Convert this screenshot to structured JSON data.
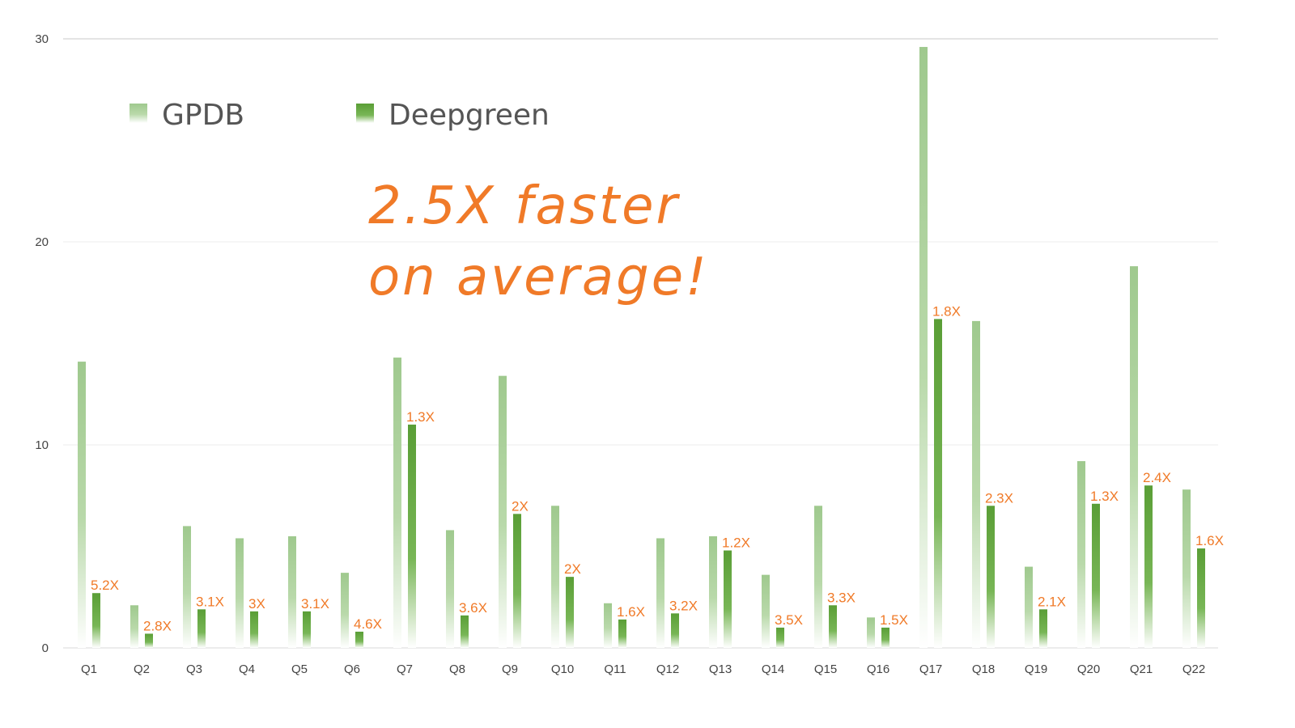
{
  "chart_data": {
    "type": "bar",
    "categories": [
      "Q1",
      "Q2",
      "Q3",
      "Q4",
      "Q5",
      "Q6",
      "Q7",
      "Q8",
      "Q9",
      "Q10",
      "Q11",
      "Q12",
      "Q13",
      "Q14",
      "Q15",
      "Q16",
      "Q17",
      "Q18",
      "Q19",
      "Q20",
      "Q21",
      "Q22"
    ],
    "series": [
      {
        "name": "GPDB",
        "color": "#9fc98e",
        "values": [
          14.1,
          2.1,
          6.0,
          5.4,
          5.5,
          3.7,
          14.3,
          5.8,
          13.4,
          7.0,
          2.2,
          5.4,
          5.5,
          3.6,
          7.0,
          1.5,
          29.6,
          16.1,
          4.0,
          9.2,
          18.8,
          7.8
        ]
      },
      {
        "name": "Deepgreen",
        "color": "#5a9e36",
        "values": [
          2.7,
          0.7,
          1.9,
          1.8,
          1.8,
          0.8,
          11.0,
          1.6,
          6.6,
          3.5,
          1.4,
          1.7,
          4.8,
          1.0,
          2.1,
          1.0,
          16.2,
          7.0,
          1.9,
          7.1,
          8.0,
          4.9
        ]
      }
    ],
    "data_labels": [
      "5.2X",
      "2.8X",
      "3.1X",
      "3X",
      "3.1X",
      "4.6X",
      "1.3X",
      "3.6X",
      "2X",
      "2X",
      "1.6X",
      "3.2X",
      "1.2X",
      "3.5X",
      "3.3X",
      "1.5X",
      "1.8X",
      "2.3X",
      "2.1X",
      "1.3X",
      "2.4X",
      "1.6X"
    ],
    "ylim": [
      0,
      30
    ],
    "yticks": [
      "0",
      "10",
      "20",
      "30"
    ],
    "grid": true,
    "legend_position": "top-left",
    "annotation": "2.5X faster on average!",
    "annotation_color": "#f07a28",
    "title": "",
    "xlabel": "",
    "ylabel": ""
  }
}
